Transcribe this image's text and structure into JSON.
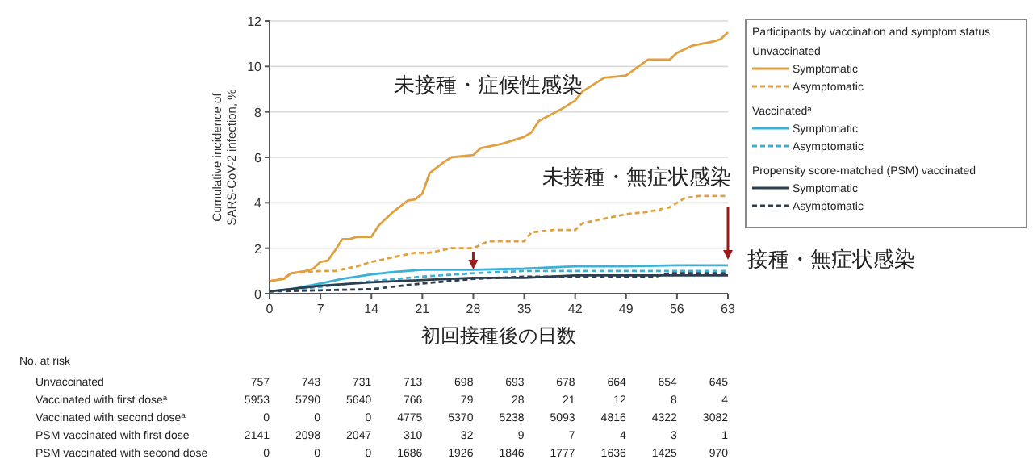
{
  "chart_data": {
    "type": "line",
    "xlabel": "初回接種後の日数",
    "ylabel": "Cumulative incidence of SARS-CoV-2 infection, %",
    "legend_title": "Participants by vaccination and symptom status",
    "legend": "top right",
    "grid": "y",
    "xlim": [
      0,
      63
    ],
    "xticks": [
      0,
      7,
      14,
      21,
      28,
      35,
      42,
      49,
      56,
      63
    ],
    "ylim": [
      0,
      12
    ],
    "yticks": [
      0,
      2,
      4,
      6,
      8,
      10,
      12
    ],
    "series": [
      {
        "name": "Symptomatic",
        "color": "#e0a040",
        "line_style": "solid",
        "x": [
          0,
          2,
          3,
          5,
          6,
          7,
          8,
          9,
          10,
          11,
          12,
          14,
          15,
          17,
          19,
          20,
          21,
          22,
          24,
          25,
          28,
          29,
          32,
          35,
          36,
          37,
          40,
          42,
          43,
          46,
          49,
          52,
          55,
          56,
          58,
          61,
          62,
          63
        ],
        "values": [
          0.55,
          0.65,
          0.9,
          1.0,
          1.1,
          1.4,
          1.45,
          1.9,
          2.4,
          2.4,
          2.5,
          2.5,
          3.0,
          3.6,
          4.1,
          4.15,
          4.4,
          5.3,
          5.8,
          6.0,
          6.1,
          6.4,
          6.6,
          6.9,
          7.1,
          7.6,
          8.1,
          8.5,
          8.9,
          9.5,
          9.6,
          10.3,
          10.3,
          10.6,
          10.9,
          11.1,
          11.2,
          11.5
        ]
      },
      {
        "name": "Asymptomatic",
        "color": "#e0a040",
        "line_style": "dashed",
        "x": [
          0,
          2,
          3,
          7,
          9,
          12,
          14,
          17,
          20,
          22,
          25,
          28,
          30,
          35,
          36,
          39,
          42,
          43,
          46,
          49,
          52,
          55,
          57,
          59,
          63
        ],
        "values": [
          0.55,
          0.7,
          0.9,
          1.0,
          1.0,
          1.2,
          1.4,
          1.6,
          1.8,
          1.8,
          2.0,
          2.0,
          2.3,
          2.3,
          2.7,
          2.8,
          2.8,
          3.1,
          3.3,
          3.5,
          3.6,
          3.8,
          4.2,
          4.3,
          4.3
        ]
      },
      {
        "name": "Symptomatic",
        "color": "#3bb0d8",
        "line_style": "solid",
        "x": [
          0,
          3,
          7,
          10,
          14,
          17,
          21,
          28,
          35,
          42,
          49,
          56,
          63
        ],
        "values": [
          0.1,
          0.2,
          0.45,
          0.65,
          0.85,
          0.95,
          1.05,
          1.05,
          1.1,
          1.2,
          1.2,
          1.25,
          1.25
        ]
      },
      {
        "name": "Asymptomatic",
        "color": "#3bb0d8",
        "line_style": "dashed",
        "x": [
          0,
          7,
          14,
          21,
          28,
          35,
          42,
          56,
          63
        ],
        "values": [
          0.1,
          0.3,
          0.55,
          0.75,
          0.9,
          1.0,
          1.0,
          1.0,
          1.0
        ]
      },
      {
        "name": "Symptomatic",
        "color": "#2d3e4e",
        "line_style": "solid",
        "x": [
          0,
          7,
          14,
          21,
          28,
          35,
          42,
          49,
          63
        ],
        "values": [
          0.1,
          0.35,
          0.5,
          0.6,
          0.7,
          0.7,
          0.8,
          0.8,
          0.8
        ]
      },
      {
        "name": "Asymptomatic",
        "color": "#2d3e4e",
        "line_style": "dashed",
        "x": [
          0,
          7,
          14,
          21,
          28,
          35,
          42,
          53,
          55,
          63
        ],
        "values": [
          0.1,
          0.15,
          0.2,
          0.45,
          0.65,
          0.75,
          0.75,
          0.75,
          0.9,
          0.9
        ]
      }
    ],
    "annotations": [
      "未接種・症候性感染",
      "未接種・無症状感染",
      "接種・無症状感染",
      "Unvaccinated",
      "Vaccinated$^{a}$",
      "Propensity score-matched (PSM) vaccinated",
      "No. at risk",
      "Unvaccinated",
      "757",
      "743",
      "731",
      "713",
      "698",
      "693",
      "678",
      "664",
      "654",
      "645",
      "Vaccinated with first dose$^{a}$",
      "5953",
      "5790",
      "5640",
      "766",
      "79",
      "28",
      "21",
      "12",
      "8",
      "4",
      "Vaccinated with second dose$^{a}$",
      "0",
      "0",
      "0",
      "4775",
      "5370",
      "5238",
      "5093",
      "4816",
      "4322",
      "3082",
      "PSM vaccinated with first dose",
      "2141",
      "2098",
      "2047",
      "310",
      "32",
      "9",
      "7",
      "4",
      "3",
      "1",
      "PSM vaccinated with second dose",
      "0",
      "0",
      "0",
      "1686",
      "1926",
      "1846",
      "1777",
      "1636",
      "1425",
      "970"
    ]
  }
}
